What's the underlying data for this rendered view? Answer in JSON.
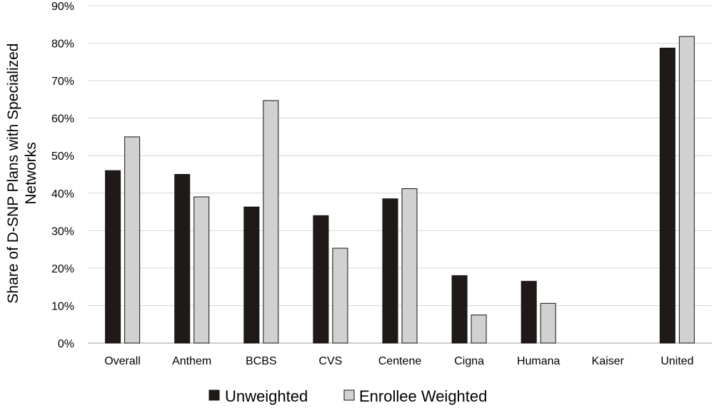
{
  "chart_data": {
    "type": "bar",
    "title": "",
    "xlabel": "",
    "ylabel_lines": [
      "Share of D-SNP Plans with Specialized",
      "Networks"
    ],
    "ylim": [
      0,
      90
    ],
    "yticks": [
      0,
      10,
      20,
      30,
      40,
      50,
      60,
      70,
      80,
      90
    ],
    "y_tick_format": "percent",
    "grid": true,
    "legend_position": "bottom",
    "categories": [
      "Overall",
      "Anthem",
      "BCBS",
      "CVS",
      "Centene",
      "Cigna",
      "Humana",
      "Kaiser",
      "United"
    ],
    "series": [
      {
        "name": "Unweighted",
        "color": "#1f1a17",
        "values": [
          46,
          45,
          36.3,
          34,
          38.5,
          18,
          16.5,
          0,
          78.7
        ]
      },
      {
        "name": "Enrollee Weighted",
        "color": "#d1d1d1",
        "values": [
          55,
          39,
          64.7,
          25.3,
          41.2,
          7.5,
          10.6,
          0,
          81.8
        ]
      }
    ]
  }
}
